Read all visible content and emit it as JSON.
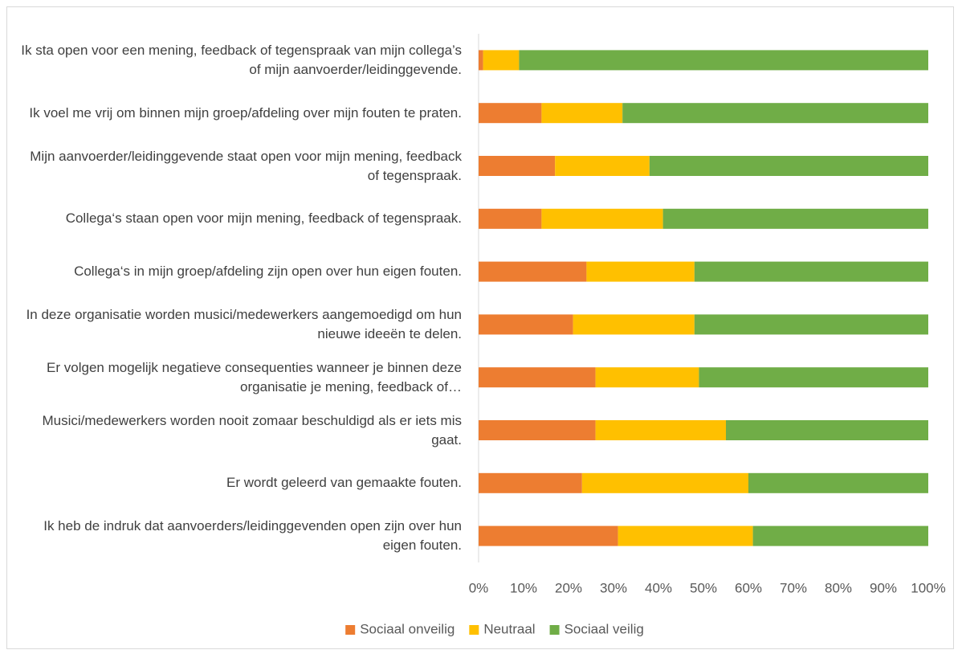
{
  "chart_data": {
    "type": "stacked-barh",
    "categories": [
      "Ik sta open voor een mening, feedback of tegenspraak van mijn collega’s of mijn aanvoerder/leidinggevende.",
      "Ik voel me vrij om binnen mijn groep/afdeling over mijn fouten te praten.",
      "Mijn aanvoerder/leidinggevende staat open voor mijn mening, feedback of tegenspraak.",
      "Collega‘s staan open voor mijn mening, feedback of tegenspraak.",
      "Collega‘s in mijn groep/afdeling zijn open over hun eigen fouten.",
      "In deze organisatie worden musici/medewerkers aangemoedigd om hun nieuwe ideeën te delen.",
      "Er volgen mogelijk negatieve consequenties wanneer je binnen deze organisatie je mening, feedback of…",
      "Musici/medewerkers worden nooit zomaar beschuldigd als er iets mis gaat.",
      "Er wordt geleerd van gemaakte fouten.",
      "Ik heb de indruk dat aanvoerders/leidinggevenden open zijn over hun eigen fouten."
    ],
    "series": [
      {
        "name": "Sociaal onveilig",
        "color": "#ed7d31",
        "values": [
          1,
          14,
          17,
          14,
          24,
          21,
          26,
          26,
          23,
          31
        ]
      },
      {
        "name": "Neutraal",
        "color": "#ffc000",
        "values": [
          8,
          18,
          21,
          27,
          24,
          27,
          23,
          29,
          37,
          30
        ]
      },
      {
        "name": "Sociaal veilig",
        "color": "#70ad47",
        "values": [
          91,
          68,
          62,
          59,
          52,
          52,
          51,
          45,
          40,
          39
        ]
      }
    ],
    "xlim": [
      0,
      100
    ],
    "xticks": [
      {
        "value": 0,
        "label": "0%"
      },
      {
        "value": 10,
        "label": "10%"
      },
      {
        "value": 20,
        "label": "20%"
      },
      {
        "value": 30,
        "label": "30%"
      },
      {
        "value": 40,
        "label": "40%"
      },
      {
        "value": 50,
        "label": "50%"
      },
      {
        "value": 60,
        "label": "60%"
      },
      {
        "value": 70,
        "label": "70%"
      },
      {
        "value": 80,
        "label": "80%"
      },
      {
        "value": 90,
        "label": "90%"
      },
      {
        "value": 100,
        "label": "100%"
      }
    ],
    "legend": "bottom",
    "grid": false
  }
}
